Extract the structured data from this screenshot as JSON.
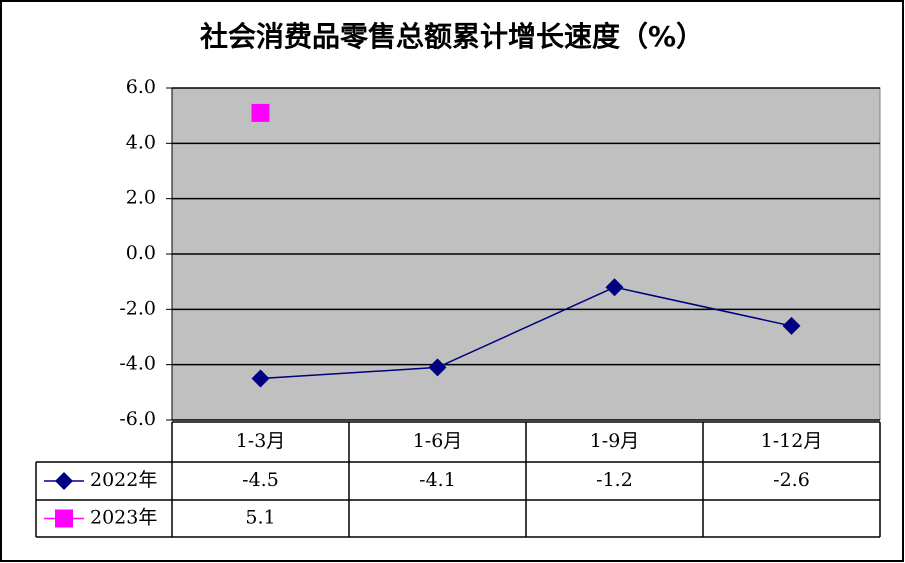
{
  "chart_data": {
    "type": "line",
    "title": "社会消费品零售总额累计增长速度（%）",
    "categories": [
      "1-3月",
      "1-6月",
      "1-9月",
      "1-12月"
    ],
    "series": [
      {
        "name": "2022年",
        "color": "#000080",
        "marker": "diamond",
        "values": [
          -4.5,
          -4.1,
          -1.2,
          -2.6
        ]
      },
      {
        "name": "2023年",
        "color": "#ff00ff",
        "marker": "square",
        "values": [
          5.1,
          null,
          null,
          null
        ]
      }
    ],
    "ylim": [
      -6,
      6
    ],
    "yticks": [
      {
        "value": -6,
        "label": "-6.0"
      },
      {
        "value": -4,
        "label": "-4.0"
      },
      {
        "value": -2,
        "label": "-2.0"
      },
      {
        "value": 0,
        "label": "0.0"
      },
      {
        "value": 2,
        "label": "2.0"
      },
      {
        "value": 4,
        "label": "4.0"
      },
      {
        "value": 6,
        "label": "6.0"
      }
    ],
    "negative_tick_color": "#ff0000",
    "grid": true,
    "plot_background": "#c0c0c0",
    "data_table": true
  }
}
